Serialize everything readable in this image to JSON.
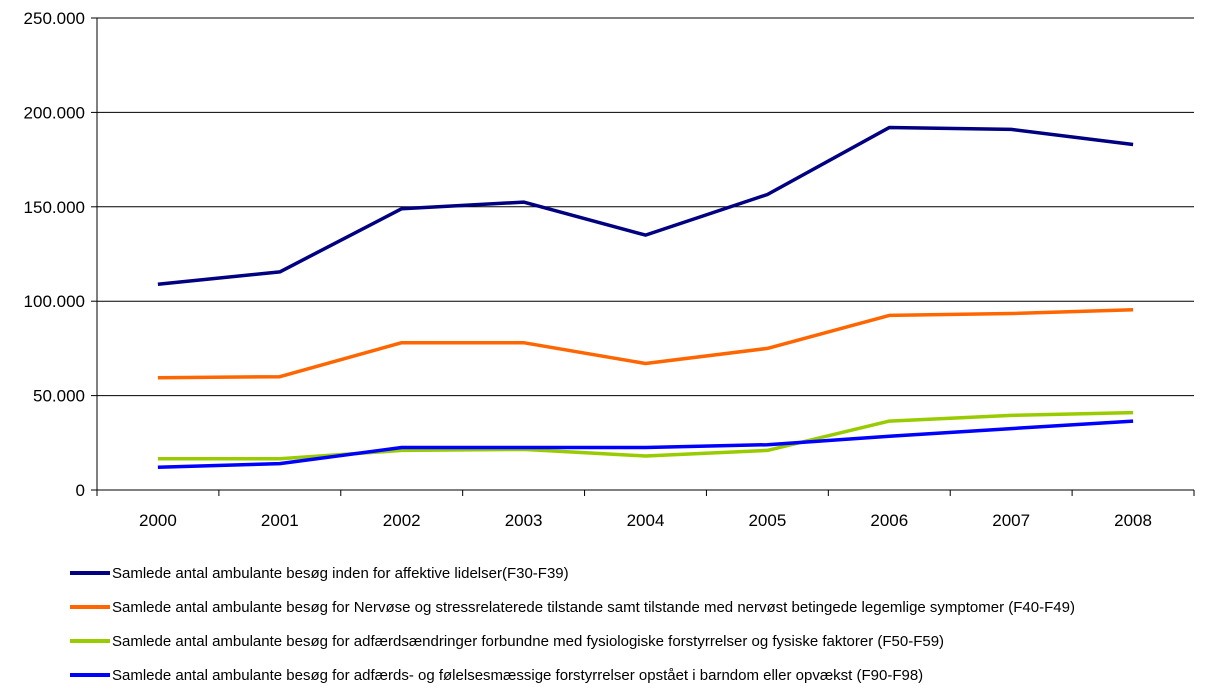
{
  "chart_data": {
    "type": "line",
    "categories": [
      "2000",
      "2001",
      "2002",
      "2003",
      "2004",
      "2005",
      "2006",
      "2007",
      "2008"
    ],
    "ylim": [
      0,
      250000
    ],
    "yticks": [
      0,
      50000,
      100000,
      150000,
      200000,
      250000
    ],
    "ytick_labels": [
      "0",
      "50.000",
      "100.000",
      "150.000",
      "200.000",
      "250.000"
    ],
    "grid": true,
    "legend_position": "bottom",
    "series": [
      {
        "name": "Samlede antal ambulante besøg inden for affektive lidelser(F30-F39)",
        "color": "#000080",
        "values": [
          109000,
          115500,
          149000,
          152500,
          135000,
          156500,
          192000,
          191000,
          183000
        ]
      },
      {
        "name": "Samlede antal ambulante besøg for Nervøse og stressrelaterede tilstande samt tilstande med nervøst betingede legemlige symptomer (F40-F49)",
        "color": "#FF6600",
        "values": [
          59500,
          60000,
          78000,
          78000,
          67000,
          75000,
          92500,
          93500,
          95500
        ]
      },
      {
        "name": "Samlede antal ambulante besøg for adfærdsændringer forbundne med fysiologiske forstyrrelser og fysiske faktorer (F50-F59)",
        "color": "#99CC00",
        "values": [
          16500,
          16500,
          21000,
          21500,
          18000,
          21000,
          36500,
          39500,
          41000
        ]
      },
      {
        "name": "Samlede antal ambulante besøg for adfærds- og følelsesmæssige forstyrrelser opstået i barndom eller opvækst (F90-F98)",
        "color": "#0000FF",
        "values": [
          12000,
          14000,
          22500,
          22500,
          22500,
          24000,
          28500,
          32500,
          36500
        ]
      }
    ]
  }
}
